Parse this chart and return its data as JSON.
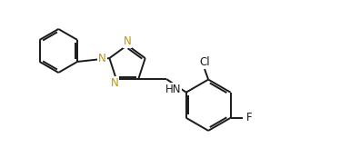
{
  "bg_color": "#ffffff",
  "line_color": "#1a1a1a",
  "N_color": "#b8960a",
  "bond_width": 1.4,
  "font_size": 8.5,
  "fig_width": 3.96,
  "fig_height": 1.74,
  "dpi": 100,
  "xlim": [
    0,
    9.5
  ],
  "ylim": [
    0,
    4.1
  ]
}
